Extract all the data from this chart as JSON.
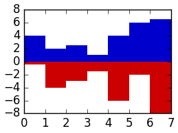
{
  "x": [
    0,
    1,
    2,
    3,
    4,
    5,
    6
  ],
  "positive_values": [
    4,
    2,
    2.5,
    1,
    4,
    6,
    6.5
  ],
  "negative_values": [
    -0.5,
    -4,
    -3,
    -1.5,
    -6,
    -2,
    -8
  ],
  "bar_width": 1.0,
  "positive_color": "#0000cc",
  "negative_color": "#cc0000",
  "xlim": [
    0,
    7
  ],
  "ylim": [
    -8,
    8
  ],
  "xticks": [
    0,
    1,
    2,
    3,
    4,
    5,
    6,
    7
  ],
  "yticks": [
    -8,
    -6,
    -4,
    -2,
    0,
    2,
    4,
    6,
    8
  ],
  "figsize": [
    2.59,
    1.94
  ],
  "dpi": 100,
  "bg_color": "#e5e5e5"
}
